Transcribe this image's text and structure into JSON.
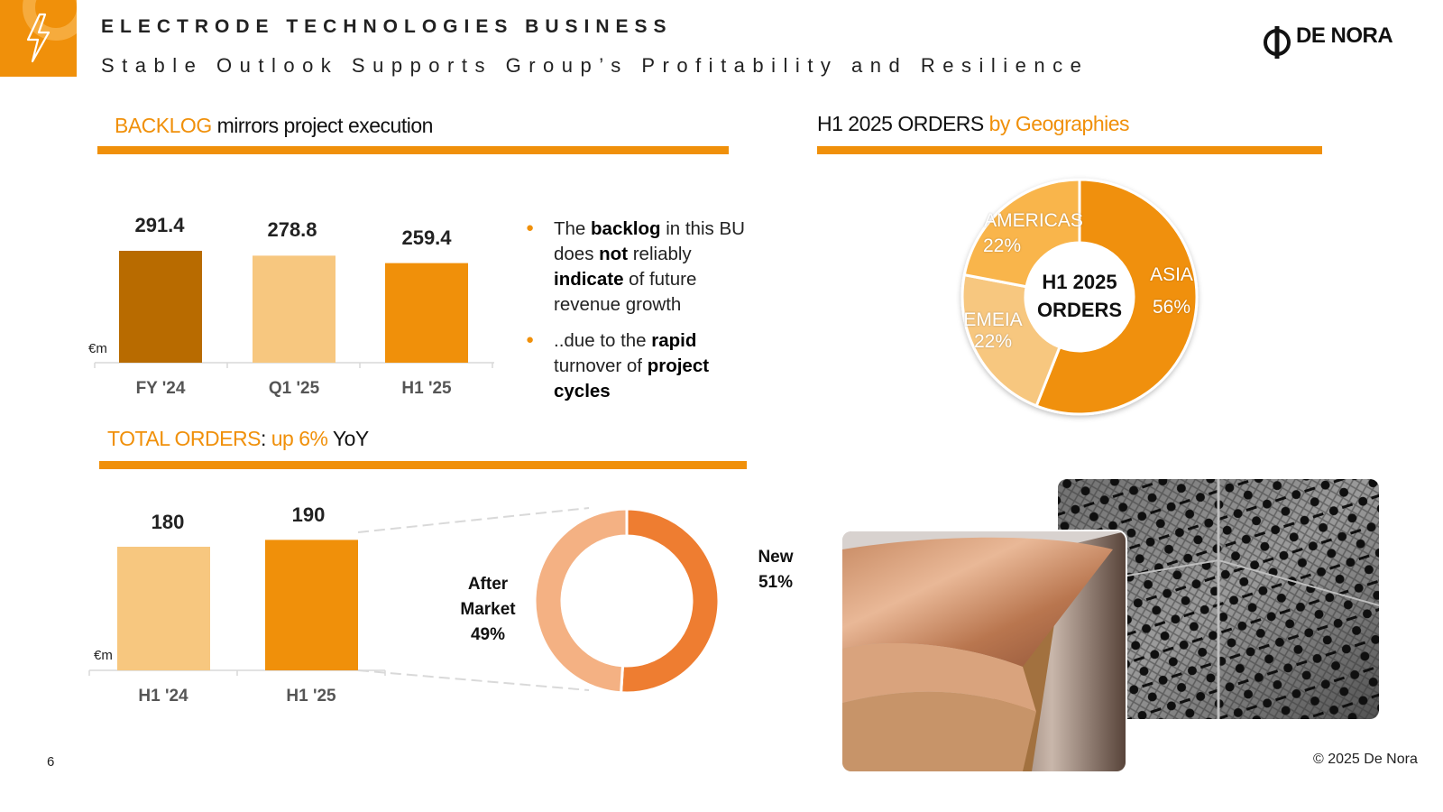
{
  "header": {
    "icon": "lightning-bolt-icon",
    "title": "ELECTRODE TECHNOLOGIES BUSINESS",
    "subtitle": "Stable Outlook Supports Group’s Profitability and Resilience",
    "logo_text": "DE NORA",
    "accent_color": "#f0900a"
  },
  "backlog_section": {
    "title_highlight": "BACKLOG",
    "title_rest": " mirrors project execution"
  },
  "orders_section": {
    "title_highlight": "TOTAL ORDERS",
    "title_colon": ": ",
    "title_up": "up 6%",
    "title_yoy": " YoY"
  },
  "geo_section": {
    "title_main": "H1 2025 ORDERS ",
    "title_highlight": "by Geographies",
    "center_line1": "H1 2025",
    "center_line2": "ORDERS"
  },
  "bullets": {
    "b1_p1": "The ",
    "b1_k1": "backlog",
    "b1_p2": " in this BU does ",
    "b1_k2": "not",
    "b1_p3": " reliably ",
    "b1_k3": "indicate",
    "b1_p4": " of future revenue growth",
    "b2_p1": "..due to the ",
    "b2_k1": "rapid",
    "b2_p2": " turnover of ",
    "b2_k2": "project cycles"
  },
  "chart_data": [
    {
      "type": "bar",
      "title": "BACKLOG mirrors project execution",
      "ylabel": "€m",
      "categories": [
        "FY '24",
        "Q1 '25",
        "H1 '25"
      ],
      "values": [
        291.4,
        278.8,
        259.4
      ],
      "value_labels": [
        "291.4",
        "278.8",
        "259.4"
      ],
      "colors": [
        "#b86b00",
        "#f7c77f",
        "#f0900a"
      ],
      "ylim": [
        0,
        300
      ]
    },
    {
      "type": "bar",
      "title": "TOTAL ORDERS: up 6% YoY",
      "ylabel": "€m",
      "categories": [
        "H1 '24",
        "H1 '25"
      ],
      "values": [
        180,
        190
      ],
      "value_labels": [
        "180",
        "190"
      ],
      "colors": [
        "#f7c77f",
        "#f0900a"
      ],
      "ylim": [
        0,
        190
      ]
    },
    {
      "type": "pie",
      "categories": [
        "New",
        "After Market"
      ],
      "values": [
        51,
        49
      ],
      "value_labels": [
        "51%",
        "49%"
      ],
      "colors": [
        "#ee7d31",
        "#f4b183"
      ]
    },
    {
      "type": "pie",
      "title": "H1 2025 ORDERS by Geographies",
      "categories": [
        "ASIA",
        "EMEIA",
        "AMERICAS"
      ],
      "values": [
        56,
        22,
        22
      ],
      "value_labels": [
        "56%",
        "22%",
        "22%"
      ],
      "colors": [
        "#f0900a",
        "#f7c77f",
        "#f9b54c"
      ]
    }
  ],
  "footer": {
    "page_number": "6",
    "copyright": "© 2025 De Nora"
  }
}
